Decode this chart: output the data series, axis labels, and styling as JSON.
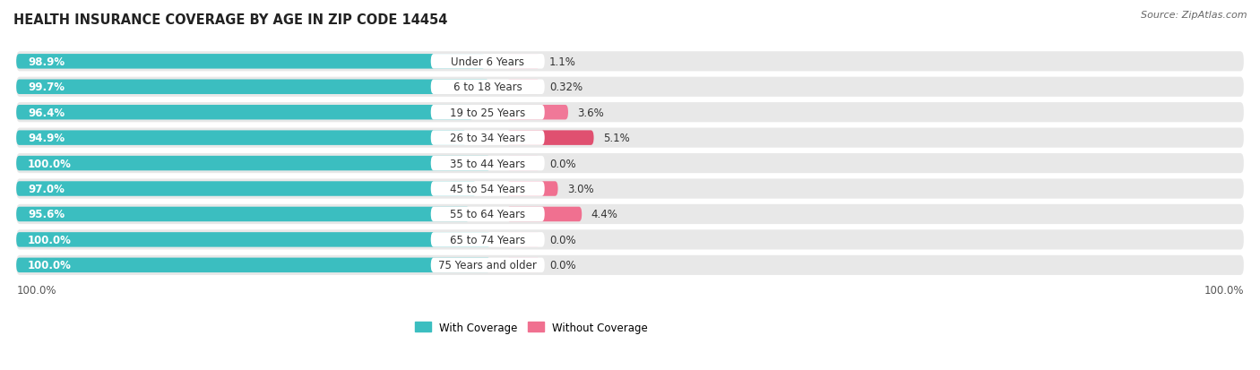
{
  "title": "HEALTH INSURANCE COVERAGE BY AGE IN ZIP CODE 14454",
  "source": "Source: ZipAtlas.com",
  "categories": [
    "Under 6 Years",
    "6 to 18 Years",
    "19 to 25 Years",
    "26 to 34 Years",
    "35 to 44 Years",
    "45 to 54 Years",
    "55 to 64 Years",
    "65 to 74 Years",
    "75 Years and older"
  ],
  "with_coverage": [
    98.9,
    99.7,
    96.4,
    94.9,
    100.0,
    97.0,
    95.6,
    100.0,
    100.0
  ],
  "without_coverage": [
    1.1,
    0.32,
    3.6,
    5.1,
    0.0,
    3.0,
    4.4,
    0.0,
    0.0
  ],
  "with_coverage_labels": [
    "98.9%",
    "99.7%",
    "96.4%",
    "94.9%",
    "100.0%",
    "97.0%",
    "95.6%",
    "100.0%",
    "100.0%"
  ],
  "without_coverage_labels": [
    "1.1%",
    "0.32%",
    "3.6%",
    "5.1%",
    "0.0%",
    "3.0%",
    "4.4%",
    "0.0%",
    "0.0%"
  ],
  "color_with": "#3bbec0",
  "without_color_map": [
    "#f5afc4",
    "#f5afc4",
    "#f07898",
    "#e05070",
    "#f5c8d8",
    "#f07090",
    "#f07090",
    "#f5c8d8",
    "#f5c8d8"
  ],
  "bg_row_color": "#e8e8e8",
  "figsize": [
    14.06,
    4.14
  ],
  "dpi": 100,
  "legend_with_label": "With Coverage",
  "legend_without_label": "Without Coverage",
  "title_fontsize": 10.5,
  "label_fontsize": 8.5,
  "category_fontsize": 8.5,
  "source_fontsize": 8,
  "bottom_label": "100.0%"
}
